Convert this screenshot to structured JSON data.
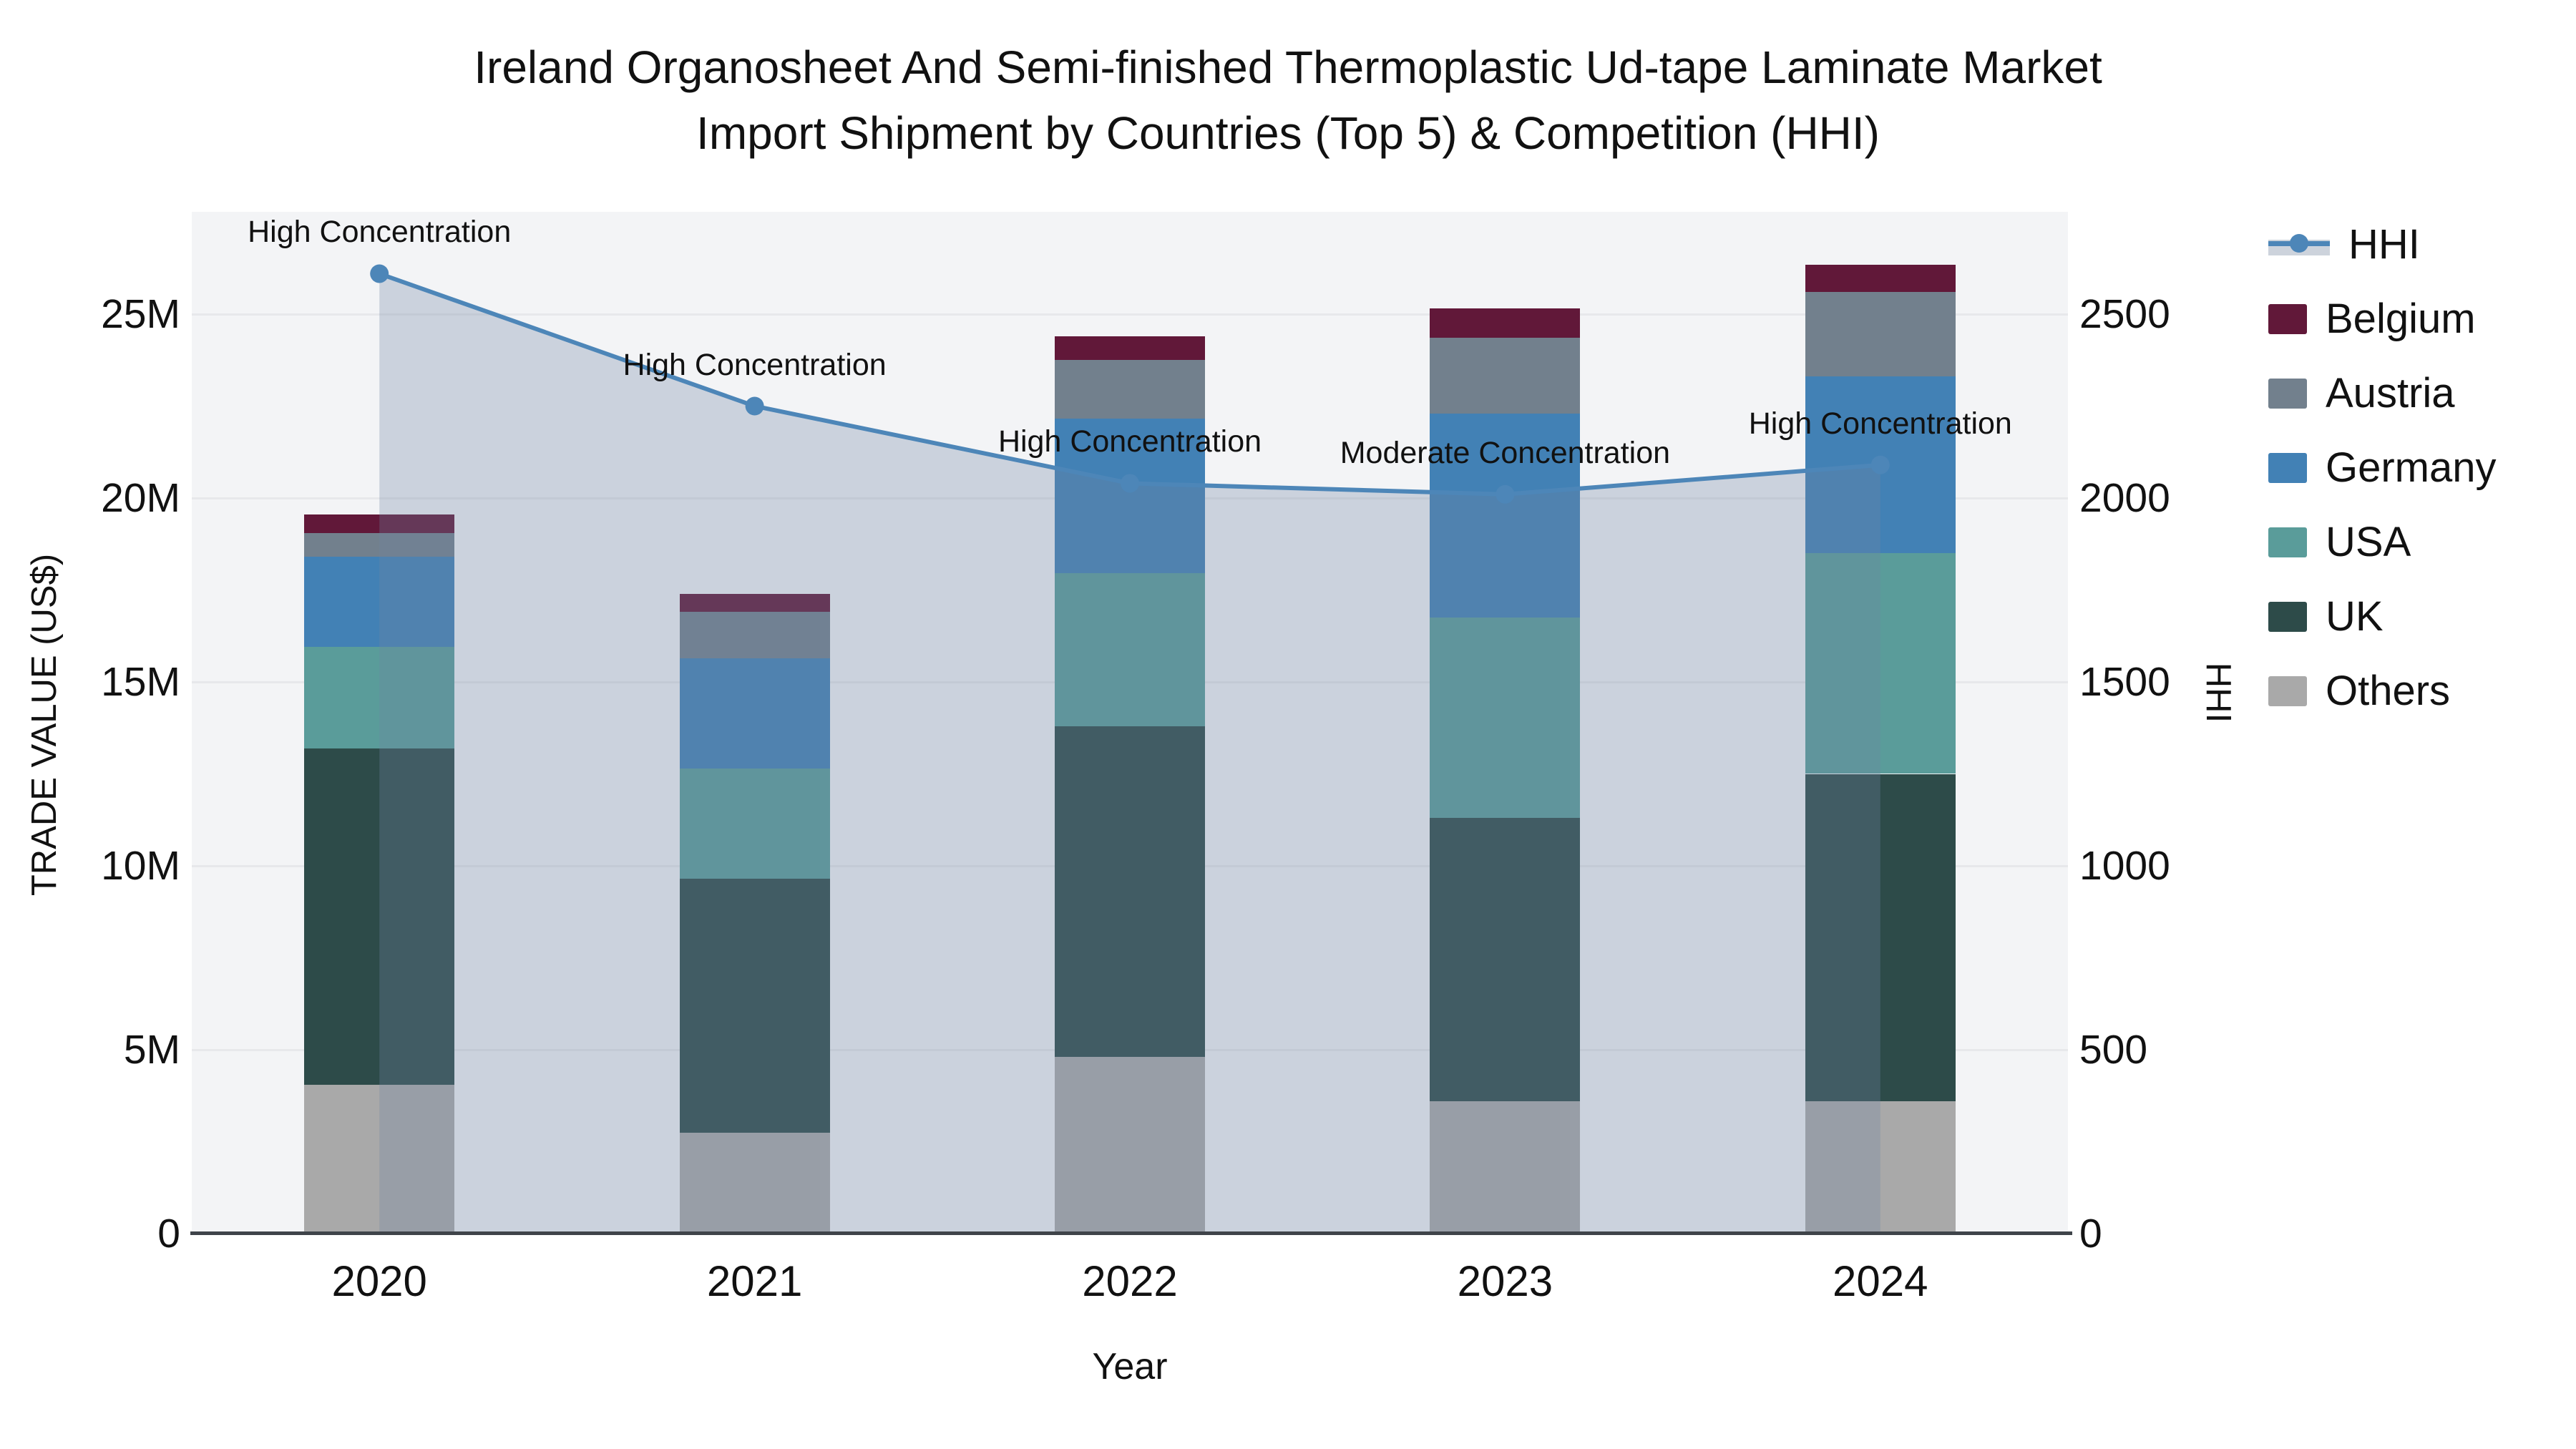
{
  "title": {
    "line1": "Ireland Organosheet And Semi-finished Thermoplastic Ud-tape Laminate Market",
    "line2": "Import Shipment by Countries (Top 5) & Competition (HHI)"
  },
  "axes": {
    "x": {
      "title": "Year",
      "categories": [
        "2020",
        "2021",
        "2022",
        "2023",
        "2024"
      ]
    },
    "y_left": {
      "title": "TRADE VALUE (US$)",
      "tick_labels": [
        "0",
        "5M",
        "10M",
        "15M",
        "20M",
        "25M"
      ],
      "tick_values": [
        0,
        5,
        10,
        15,
        20,
        25
      ],
      "range": [
        0,
        27.8
      ]
    },
    "y_right": {
      "title": "HHI",
      "tick_labels": [
        "0",
        "500",
        "1000",
        "1500",
        "2000",
        "2500"
      ],
      "tick_values": [
        0,
        500,
        1000,
        1500,
        2000,
        2500
      ],
      "range": [
        0,
        2780
      ]
    }
  },
  "legend": {
    "items": [
      {
        "label": "HHI",
        "type": "line"
      },
      {
        "label": "Belgium",
        "type": "swatch"
      },
      {
        "label": "Austria",
        "type": "swatch"
      },
      {
        "label": "Germany",
        "type": "swatch"
      },
      {
        "label": "USA",
        "type": "swatch"
      },
      {
        "label": "UK",
        "type": "swatch"
      },
      {
        "label": "Others",
        "type": "swatch"
      }
    ]
  },
  "chart_data": {
    "type": "bar+line",
    "categories": [
      "2020",
      "2021",
      "2022",
      "2023",
      "2024"
    ],
    "bar_units": "million US$",
    "stack_order_bottom_to_top": [
      "Others",
      "UK",
      "USA",
      "Germany",
      "Austria",
      "Belgium"
    ],
    "series": [
      {
        "name": "Others",
        "color": "#a9a9a9",
        "values": [
          4.05,
          2.75,
          4.8,
          3.6,
          3.6
        ]
      },
      {
        "name": "UK",
        "color": "#2d4b49",
        "values": [
          9.15,
          6.9,
          9.0,
          7.7,
          8.9
        ]
      },
      {
        "name": "USA",
        "color": "#5a9c9a",
        "values": [
          2.75,
          3.0,
          4.15,
          5.45,
          6.0
        ]
      },
      {
        "name": "Germany",
        "color": "#4281b5",
        "values": [
          2.45,
          3.0,
          4.2,
          5.55,
          4.8
        ]
      },
      {
        "name": "Austria",
        "color": "#72808d",
        "values": [
          0.65,
          1.25,
          1.6,
          2.05,
          2.3
        ]
      },
      {
        "name": "Belgium",
        "color": "#611839",
        "values": [
          0.5,
          0.5,
          0.65,
          0.8,
          0.75
        ]
      }
    ],
    "bar_totals": [
      19.55,
      17.4,
      24.4,
      25.15,
      26.35
    ],
    "hhi_line": {
      "name": "HHI",
      "color": "#4d86b8",
      "fill_color": "rgba(114,134,161,0.30)",
      "values": [
        2610,
        2250,
        2040,
        2010,
        2090
      ]
    },
    "annotations": [
      {
        "category": "2020",
        "text": "High Concentration"
      },
      {
        "category": "2021",
        "text": "High Concentration"
      },
      {
        "category": "2022",
        "text": "High Concentration"
      },
      {
        "category": "2023",
        "text": "Moderate Concentration"
      },
      {
        "category": "2024",
        "text": "High Concentration"
      }
    ],
    "layout": {
      "grid": true,
      "legend_position": "right",
      "plot_bg": "#f3f4f6"
    }
  }
}
